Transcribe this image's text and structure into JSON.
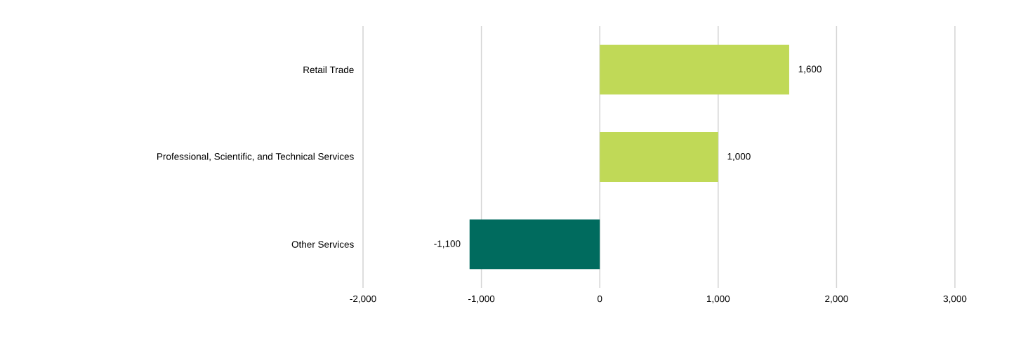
{
  "chart_data": {
    "type": "bar",
    "orientation": "horizontal",
    "categories": [
      "Retail Trade",
      "Professional, Scientific, and Technical Services",
      "Other Services"
    ],
    "values": [
      1600,
      1000,
      -1100
    ],
    "colors": [
      "#c0d957",
      "#c0d957",
      "#006b5e"
    ],
    "value_labels": [
      "1,600",
      "1,000",
      "-1,100"
    ],
    "xlim": [
      -2000,
      3000
    ],
    "xticks": [
      {
        "value": -2000,
        "label": "-2,000"
      },
      {
        "value": -1000,
        "label": "-1,000"
      },
      0,
      {
        "value": 1000,
        "label": "1,000"
      },
      {
        "value": 2000,
        "label": "2,000"
      },
      {
        "value": 3000,
        "label": "3,000"
      }
    ],
    "grid": "x"
  }
}
